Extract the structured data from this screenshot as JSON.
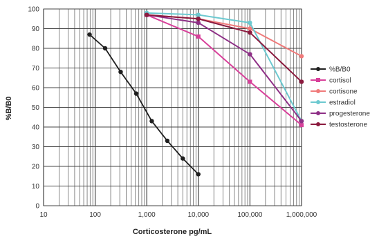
{
  "chart_data": {
    "type": "line",
    "title": "",
    "xlabel": "Corticosterone pg/mL",
    "ylabel": "%B/B0",
    "x_scale": "log",
    "xlim": [
      10,
      1000000
    ],
    "ylim": [
      0,
      100
    ],
    "x_tick_values": [
      10,
      100,
      1000,
      10000,
      100000,
      1000000
    ],
    "x_tick_labels": [
      "10",
      "100",
      "1,000",
      "10,000",
      "100,000",
      "1,000,000"
    ],
    "y_ticks": [
      0,
      10,
      20,
      30,
      40,
      50,
      60,
      70,
      80,
      90,
      100
    ],
    "grid": true,
    "legend_position": "right",
    "series": [
      {
        "name": "%B/B0",
        "color": "#1f1f1f",
        "marker": "circle",
        "x": [
          78,
          156,
          312,
          625,
          1250,
          2500,
          5000,
          10000
        ],
        "y": [
          87,
          80,
          68,
          57,
          43,
          33,
          24,
          16
        ]
      },
      {
        "name": "cortisol",
        "color": "#d8409a",
        "marker": "square",
        "x": [
          1000,
          10000,
          100000,
          1000000
        ],
        "y": [
          97,
          86,
          63,
          41
        ]
      },
      {
        "name": "cortisone",
        "color": "#f07a7a",
        "marker": "circle",
        "x": [
          1000,
          10000,
          100000,
          1000000
        ],
        "y": [
          97,
          95,
          90,
          76
        ]
      },
      {
        "name": "estradiol",
        "color": "#6cc9d0",
        "marker": "circle",
        "x": [
          1000,
          10000,
          100000,
          1000000
        ],
        "y": [
          98,
          97,
          93,
          43
        ]
      },
      {
        "name": "progesterone",
        "color": "#8e2f86",
        "marker": "circle",
        "x": [
          1000,
          10000,
          100000,
          1000000
        ],
        "y": [
          97,
          93,
          77,
          43
        ]
      },
      {
        "name": "testosterone",
        "color": "#8b1a3e",
        "marker": "circle",
        "x": [
          1000,
          10000,
          100000,
          1000000
        ],
        "y": [
          97,
          95,
          88,
          63
        ]
      }
    ]
  }
}
